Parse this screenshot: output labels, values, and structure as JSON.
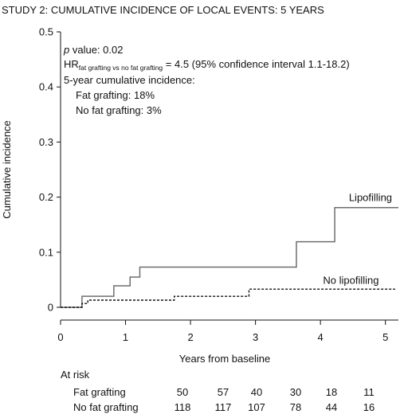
{
  "chart_data": {
    "type": "line",
    "title": "STUDY 2: CUMULATIVE INCIDENCE OF LOCAL EVENTS: 5 YEARS",
    "xlabel": "Years from baseline",
    "ylabel": "Cumulative incidence",
    "xlim": [
      0,
      5.2
    ],
    "ylim": [
      0,
      0.5
    ],
    "xticks": [
      "0",
      "1",
      "2",
      "3",
      "4",
      "5"
    ],
    "yticks": [
      "0",
      "0.1",
      "0.2",
      "0.3",
      "0.4",
      "0.5"
    ],
    "grid": false,
    "series": [
      {
        "name": "Lipofilling",
        "style": "solid",
        "color": "#6e6e6e",
        "steps": [
          [
            0,
            0
          ],
          [
            0.33,
            0.02
          ],
          [
            0.82,
            0.039
          ],
          [
            1.07,
            0.055
          ],
          [
            1.22,
            0.073
          ],
          [
            3.63,
            0.119
          ],
          [
            4.22,
            0.181
          ],
          [
            5.2,
            0.181
          ]
        ]
      },
      {
        "name": "No lipofilling",
        "style": "dashed",
        "color": "#111111",
        "steps": [
          [
            0,
            0
          ],
          [
            0.33,
            0.007
          ],
          [
            0.42,
            0.013
          ],
          [
            1.75,
            0.02
          ],
          [
            2.9,
            0.033
          ],
          [
            5.15,
            0.033
          ]
        ]
      }
    ],
    "annotations": {
      "p_prefix": "p",
      "p_rest": " value: 0.02",
      "hr_main": "HR",
      "hr_sub": "fat grafting vs no fat grafting",
      "hr_rest": " = 4.5 (95% confidence interval 1.1-18.2)",
      "cum_header": "5-year cumulative incidence:",
      "cum_fat": "Fat grafting: 18%",
      "cum_nofat": "No fat grafting: 3%"
    },
    "risk_table": {
      "header": "At risk",
      "rows": [
        {
          "label": "Fat grafting",
          "values": [
            "50",
            "57",
            "40",
            "30",
            "18",
            "11"
          ]
        },
        {
          "label": "No fat grafting",
          "values": [
            "118",
            "117",
            "107",
            "78",
            "44",
            "16"
          ]
        }
      ]
    }
  }
}
